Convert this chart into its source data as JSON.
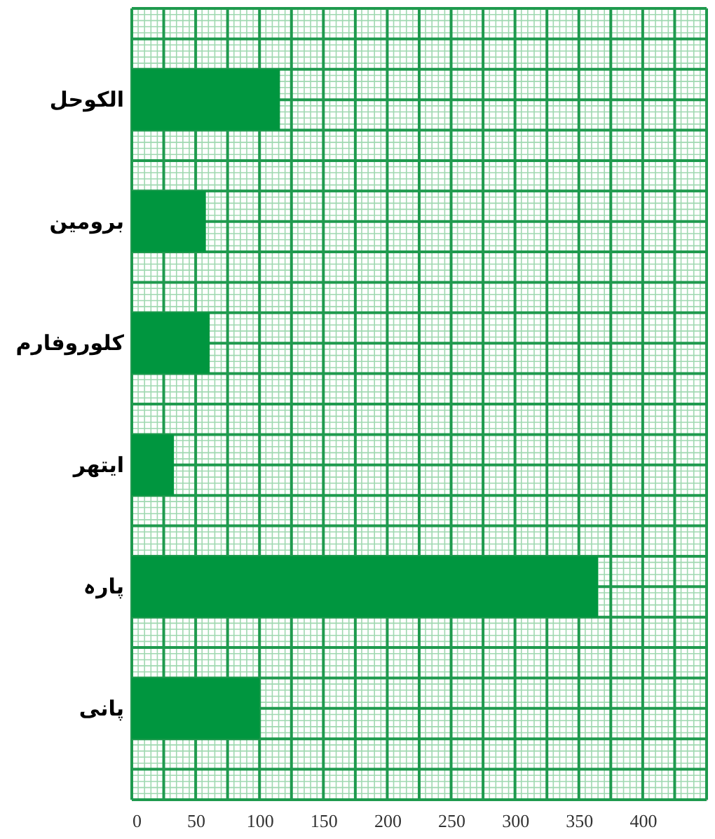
{
  "chart_data": {
    "type": "bar",
    "orientation": "horizontal",
    "categories": [
      "الکوحل",
      "برومین",
      "کلوروفارم",
      "ایتھر",
      "پارہ",
      "پانی"
    ],
    "values": [
      116,
      58,
      61,
      33,
      365,
      100
    ],
    "color": "#00963f",
    "xlim": [
      0,
      450
    ],
    "xticks": [
      0,
      50,
      100,
      150,
      200,
      250,
      300,
      350,
      400
    ],
    "grid": true
  }
}
